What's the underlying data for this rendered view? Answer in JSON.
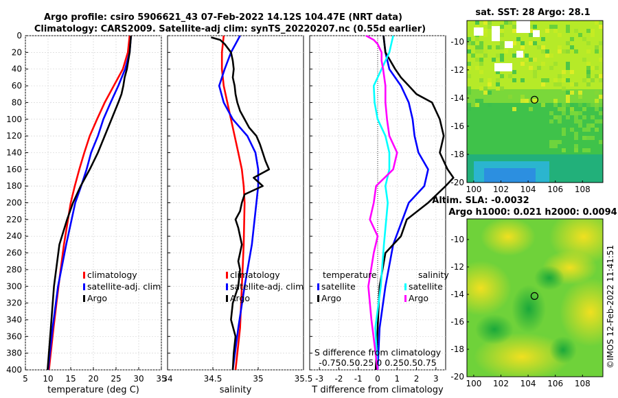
{
  "header": {
    "line1": "Argo profile: csiro 5906621_43 07-Feb-2022 14.12S 104.47E (NRT data)",
    "line2": "Climatology: CARS2009. Satellite-adj clim: synTS_20220207.nc (0.55d earlier)"
  },
  "colors": {
    "climatology": "#ff0000",
    "satellite": "#0000ff",
    "argo": "#000000",
    "sat_salinity": "#00ffff",
    "argo_salinity": "#ff00ff"
  },
  "chart_data": [
    {
      "type": "line",
      "id": "temperature",
      "xlabel": "temperature (deg C)",
      "ylabel": "",
      "xlim": [
        5,
        35
      ],
      "ylim": [
        0,
        400
      ],
      "xticks": [
        5,
        10,
        15,
        20,
        25,
        30,
        35
      ],
      "yticks": [
        0,
        20,
        40,
        60,
        80,
        100,
        120,
        140,
        160,
        180,
        200,
        220,
        240,
        260,
        280,
        300,
        320,
        340,
        360,
        380,
        400
      ],
      "legend": [
        "climatology",
        "satellite-adj. clim",
        "Argo"
      ],
      "series": [
        {
          "name": "climatology",
          "color": "#ff0000",
          "depth": [
            0,
            20,
            40,
            60,
            80,
            100,
            120,
            140,
            160,
            180,
            200,
            250,
            300,
            350,
            400
          ],
          "values": [
            28.0,
            27.6,
            26.5,
            24.5,
            22.5,
            20.8,
            19.2,
            18.0,
            16.9,
            15.9,
            15.0,
            13.5,
            12.3,
            11.2,
            10.2
          ]
        },
        {
          "name": "satellite-adj. clim",
          "color": "#0000ff",
          "depth": [
            0,
            20,
            40,
            60,
            80,
            100,
            120,
            140,
            160,
            180,
            200,
            250,
            300,
            350,
            400
          ],
          "values": [
            28.3,
            28.0,
            27.0,
            25.5,
            23.8,
            22.2,
            21.0,
            19.5,
            18.5,
            17.3,
            16.0,
            14.0,
            12.2,
            11.0,
            10.0
          ]
        },
        {
          "name": "Argo",
          "color": "#000000",
          "depth": [
            0,
            20,
            40,
            50,
            60,
            70,
            80,
            100,
            120,
            140,
            160,
            180,
            200,
            220,
            250,
            300,
            350,
            400
          ],
          "values": [
            28.3,
            28.0,
            27.4,
            26.9,
            26.6,
            26.2,
            25.5,
            24.0,
            22.5,
            21.0,
            19.2,
            17.2,
            15.5,
            14.2,
            12.5,
            11.3,
            10.6,
            9.9
          ]
        }
      ]
    },
    {
      "type": "line",
      "id": "salinity",
      "xlabel": "salinity",
      "xlim": [
        34,
        35.5
      ],
      "ylim": [
        0,
        400
      ],
      "xticks": [
        34,
        34.5,
        35,
        35.5
      ],
      "legend": [
        "climatology",
        "satellite-adj. clim",
        "Argo"
      ],
      "series": [
        {
          "name": "climatology",
          "color": "#ff0000",
          "depth": [
            0,
            20,
            40,
            60,
            80,
            100,
            120,
            140,
            160,
            180,
            200,
            250,
            300,
            350,
            400
          ],
          "values": [
            34.62,
            34.6,
            34.6,
            34.62,
            34.66,
            34.7,
            34.74,
            34.78,
            34.82,
            34.84,
            34.85,
            34.84,
            34.82,
            34.8,
            34.75
          ]
        },
        {
          "name": "satellite-adj. clim",
          "color": "#0000ff",
          "depth": [
            0,
            10,
            20,
            40,
            60,
            80,
            100,
            120,
            140,
            160,
            180,
            200,
            250,
            300,
            350,
            400
          ],
          "values": [
            34.8,
            34.75,
            34.7,
            34.63,
            34.57,
            34.62,
            34.72,
            34.88,
            34.97,
            35.0,
            35.0,
            34.98,
            34.93,
            34.85,
            34.78,
            34.72
          ]
        },
        {
          "name": "Argo",
          "color": "#000000",
          "depth": [
            2,
            5,
            10,
            20,
            30,
            40,
            50,
            60,
            70,
            80,
            90,
            100,
            110,
            120,
            130,
            140,
            150,
            160,
            170,
            180,
            190,
            200,
            210,
            220,
            230,
            240,
            250,
            260,
            270,
            280,
            300,
            320,
            340,
            360,
            380,
            400
          ],
          "values": [
            34.48,
            34.58,
            34.63,
            34.7,
            34.72,
            34.73,
            34.72,
            34.74,
            34.75,
            34.77,
            34.8,
            34.85,
            34.9,
            34.98,
            35.02,
            35.05,
            35.08,
            35.12,
            34.95,
            35.05,
            34.85,
            34.82,
            34.8,
            34.75,
            34.78,
            34.8,
            34.82,
            34.8,
            34.78,
            34.8,
            34.78,
            34.72,
            34.7,
            34.75,
            34.73,
            34.72
          ]
        }
      ]
    },
    {
      "type": "line",
      "id": "difference",
      "xlabel": "T difference from climatology",
      "inner_label_line1": "S difference from climatology",
      "inner_label_line2": "-0.750.50.25  0  0.250.50.75",
      "xlim": [
        -3.5,
        3.5
      ],
      "ylim": [
        0,
        400
      ],
      "xticks": [
        -3,
        -2,
        -1,
        0,
        1,
        2,
        3
      ],
      "legend_left": {
        "title": "temperature",
        "items": [
          "satellite",
          "Argo"
        ]
      },
      "legend_right": {
        "title": "salinity",
        "items": [
          "satellite",
          "Argo"
        ]
      },
      "series": [
        {
          "name": "temperature satellite",
          "color": "#0000ff",
          "depth": [
            0,
            20,
            40,
            60,
            80,
            100,
            120,
            140,
            160,
            180,
            200,
            250,
            300,
            350,
            400
          ],
          "values": [
            0.3,
            0.4,
            0.6,
            1.2,
            1.6,
            1.8,
            1.9,
            2.1,
            2.6,
            2.4,
            1.6,
            0.8,
            0.4,
            0.1,
            0.0
          ]
        },
        {
          "name": "temperature Argo",
          "color": "#000000",
          "depth": [
            0,
            20,
            40,
            50,
            60,
            70,
            80,
            100,
            120,
            140,
            160,
            170,
            180,
            200,
            220,
            240,
            260,
            300,
            350,
            400
          ],
          "values": [
            0.3,
            0.4,
            0.9,
            1.2,
            1.6,
            2.0,
            2.8,
            3.2,
            3.4,
            3.2,
            3.6,
            3.9,
            3.5,
            2.6,
            1.5,
            1.2,
            0.4,
            0.1,
            0.0,
            -0.1
          ]
        },
        {
          "name": "salinity satellite",
          "color": "#00ffff",
          "depth": [
            0,
            20,
            40,
            60,
            80,
            100,
            120,
            140,
            160,
            180,
            200,
            250,
            300,
            350,
            400
          ],
          "values": [
            0.2,
            0.15,
            0.05,
            -0.05,
            -0.04,
            0.0,
            0.1,
            0.15,
            0.15,
            0.1,
            0.13,
            0.08,
            0.04,
            -0.03,
            0.0
          ]
        },
        {
          "name": "salinity Argo",
          "color": "#ff00ff",
          "depth": [
            0,
            5,
            10,
            20,
            30,
            40,
            60,
            80,
            100,
            120,
            140,
            160,
            180,
            200,
            220,
            240,
            260,
            300,
            340,
            400
          ],
          "values": [
            -0.15,
            -0.05,
            0.0,
            0.05,
            0.05,
            0.07,
            0.1,
            0.1,
            0.12,
            0.15,
            0.25,
            0.2,
            -0.02,
            -0.05,
            -0.1,
            0.0,
            -0.05,
            -0.12,
            -0.08,
            0.0
          ]
        }
      ]
    },
    {
      "type": "heatmap",
      "id": "sst_map",
      "title": "sat. SST: 28 Argo: 28.1",
      "xlim": [
        99.5,
        109.5
      ],
      "ylim": [
        -20,
        -8.5
      ],
      "xticks": [
        100,
        102,
        104,
        106,
        108
      ],
      "yticks": [
        -10,
        -12,
        -14,
        -16,
        -18,
        -20
      ],
      "marker": {
        "lon": 104.47,
        "lat": -14.12
      }
    },
    {
      "type": "heatmap",
      "id": "sla_map",
      "title_line1": "Altim. SLA: -0.0032",
      "title_line2": "Argo h1000: 0.021 h2000: 0.0094",
      "xlim": [
        99.5,
        109.5
      ],
      "ylim": [
        -20,
        -8.5
      ],
      "xticks": [
        100,
        102,
        104,
        106,
        108
      ],
      "yticks": [
        -10,
        -12,
        -14,
        -16,
        -18,
        -20
      ],
      "marker": {
        "lon": 104.47,
        "lat": -14.12
      }
    }
  ],
  "watermark": "©IMOS 12-Feb-2022 11:41:51"
}
